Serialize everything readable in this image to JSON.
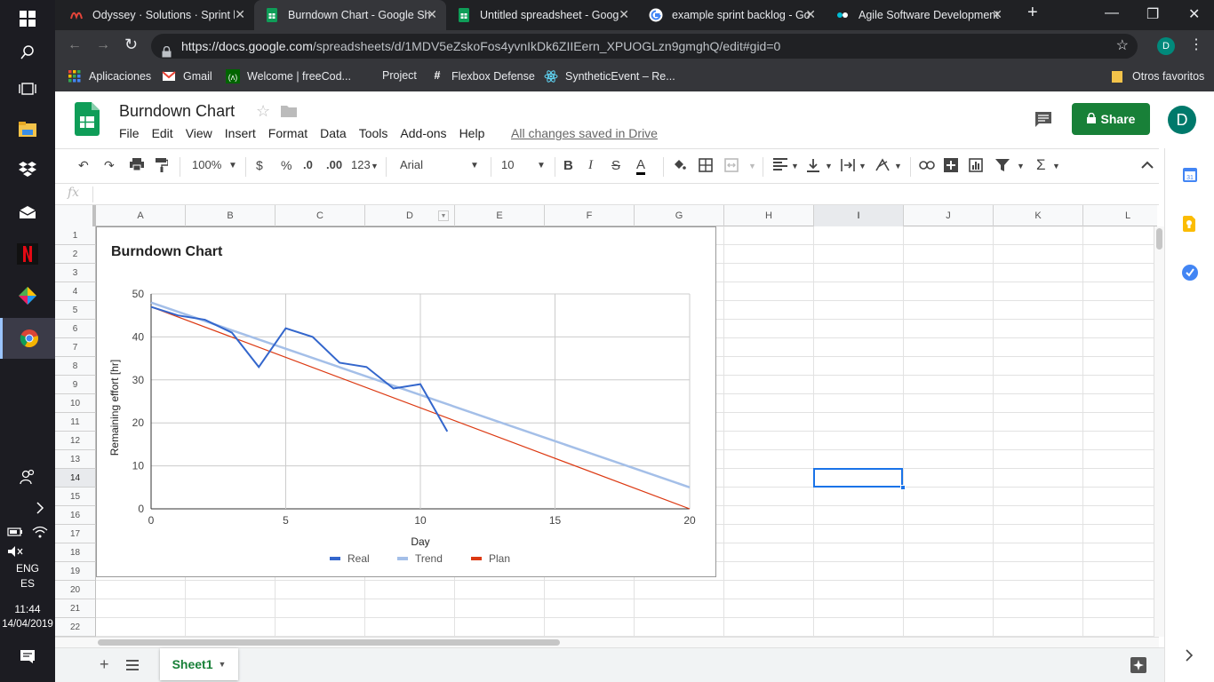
{
  "browser": {
    "tabs": [
      {
        "title": "Odyssey · Solutions · Sprint b",
        "favicon": "odyssey-icon"
      },
      {
        "title": "Burndown Chart - Google Sh",
        "favicon": "sheets-icon",
        "active": true
      },
      {
        "title": "Untitled spreadsheet - Goog",
        "favicon": "sheets-icon"
      },
      {
        "title": "example sprint backlog - Go",
        "favicon": "google-icon"
      },
      {
        "title": "Agile Software Development",
        "favicon": "agile-icon"
      }
    ],
    "url_host": "https://docs.google.com",
    "url_path": "/spreadsheets/d/1MDV5eZskoFos4yvnIkDk6ZIIEern_XPUOGLzn9gmghQ/edit#gid=0",
    "profile_initial": "D",
    "bookmarks": [
      {
        "label": "Aplicaciones",
        "icon": "apps-grid-icon"
      },
      {
        "label": "Gmail",
        "icon": "gmail-icon"
      },
      {
        "label": "Welcome | freeCod...",
        "icon": "freecodecamp-icon"
      },
      {
        "label": "Project",
        "icon": ""
      },
      {
        "label": "Flexbox Defense",
        "icon": "hash-icon"
      },
      {
        "label": "SyntheticEvent – Re...",
        "icon": "react-icon"
      }
    ],
    "other_bookmarks": "Otros favoritos"
  },
  "sheets": {
    "title": "Burndown Chart",
    "menu": [
      "File",
      "Edit",
      "View",
      "Insert",
      "Format",
      "Data",
      "Tools",
      "Add-ons",
      "Help"
    ],
    "saved_status": "All changes saved in Drive",
    "share_label": "Share",
    "user_initial": "D",
    "toolbar": {
      "zoom": "100%",
      "currency": "$",
      "percent": "%",
      "decrease_decimal": ".0",
      "increase_decimal": ".00",
      "more_formats": "123",
      "font": "Arial",
      "font_size": "10"
    },
    "fx": "fx",
    "columns": [
      "A",
      "B",
      "C",
      "D",
      "E",
      "F",
      "G",
      "H",
      "I",
      "J",
      "K",
      "L"
    ],
    "rows": [
      "1",
      "2",
      "3",
      "4",
      "5",
      "6",
      "7",
      "8",
      "9",
      "10",
      "11",
      "12",
      "13",
      "14",
      "15",
      "16",
      "17",
      "18",
      "19",
      "20",
      "21",
      "22"
    ],
    "selected_cell": "I14",
    "sheet_name": "Sheet1"
  },
  "chart_data": {
    "type": "line",
    "title": "Burndown Chart",
    "xlabel": "Day",
    "ylabel": "Remaining effort [hr]",
    "xlim": [
      0,
      20
    ],
    "ylim": [
      0,
      50
    ],
    "xticks": [
      "0",
      "5",
      "10",
      "15",
      "20"
    ],
    "yticks": [
      "0",
      "10",
      "20",
      "30",
      "40",
      "50"
    ],
    "grid": true,
    "legend_position": "bottom",
    "series": [
      {
        "name": "Real",
        "color": "#3366cc",
        "x": [
          0,
          1,
          2,
          3,
          4,
          5,
          6,
          7,
          8,
          9,
          10,
          11
        ],
        "y": [
          47,
          45,
          44,
          41,
          33,
          42,
          40,
          34,
          33,
          28,
          29,
          18
        ]
      },
      {
        "name": "Trend",
        "color": "#a4bfe8",
        "x": [
          0,
          20
        ],
        "y": [
          48,
          5
        ]
      },
      {
        "name": "Plan",
        "color": "#dc3912",
        "x": [
          0,
          20
        ],
        "y": [
          47,
          0
        ]
      }
    ]
  },
  "system": {
    "language": "ENG",
    "layout": "ES",
    "time": "11:44",
    "date": "14/04/2019"
  }
}
